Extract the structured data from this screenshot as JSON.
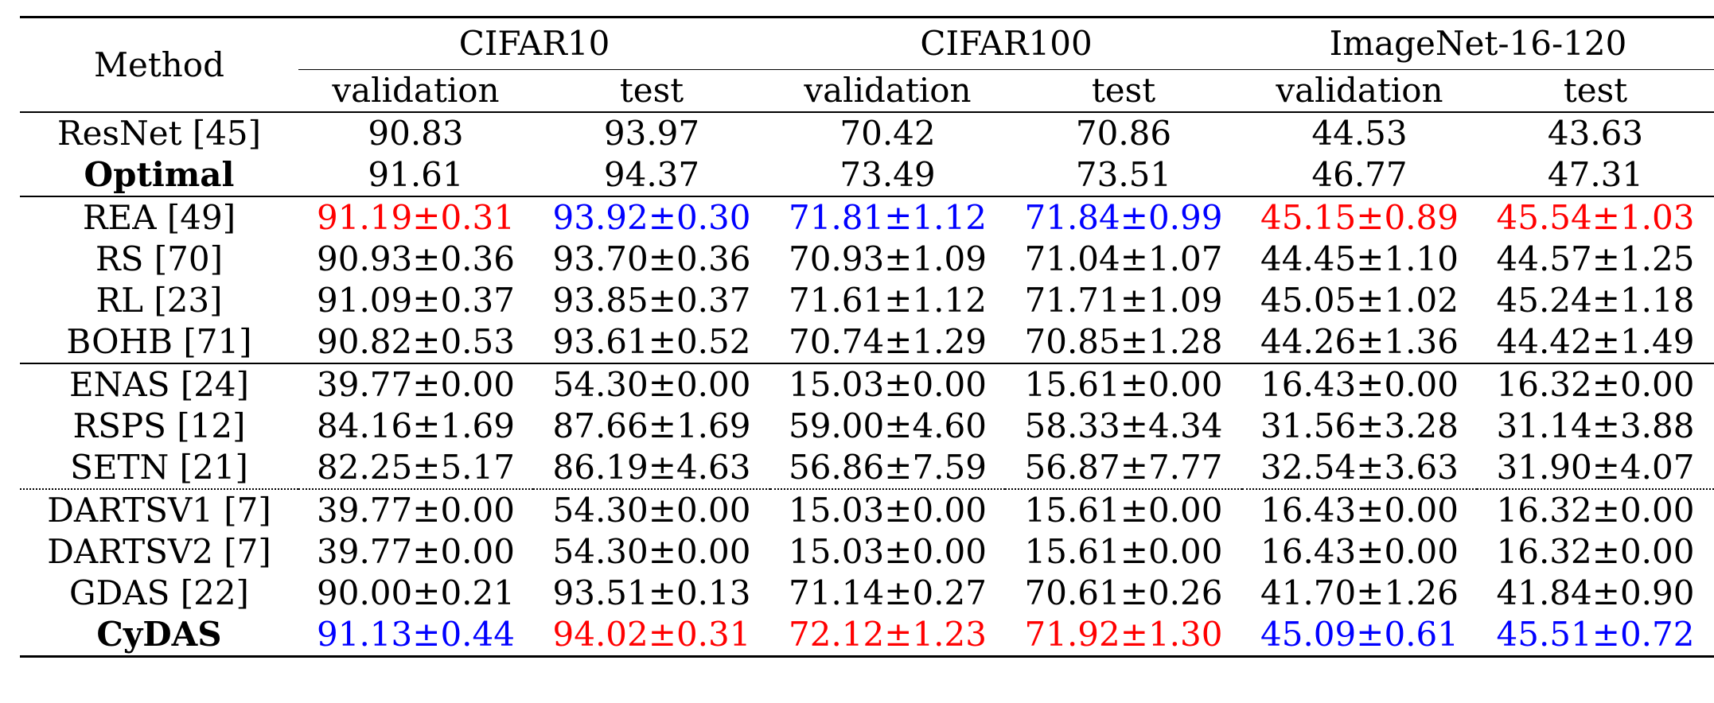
{
  "header": {
    "method": "Method",
    "datasets": [
      "CIFAR10",
      "CIFAR100",
      "ImageNet-16-120"
    ],
    "subcols": [
      "validation",
      "test",
      "validation",
      "test",
      "validation",
      "test"
    ]
  },
  "groups": [
    [
      {
        "method": "ResNet [45]",
        "bold": false,
        "values": [
          "90.83",
          "93.97",
          "70.42",
          "70.86",
          "44.53",
          "43.63"
        ],
        "colors": [
          "",
          "",
          "",
          "",
          "",
          ""
        ]
      },
      {
        "method": "Optimal",
        "bold": true,
        "values": [
          "91.61",
          "94.37",
          "73.49",
          "73.51",
          "46.77",
          "47.31"
        ],
        "colors": [
          "",
          "",
          "",
          "",
          "",
          ""
        ]
      }
    ],
    [
      {
        "method": "REA [49]",
        "bold": false,
        "values": [
          "91.19±0.31",
          "93.92±0.30",
          "71.81±1.12",
          "71.84±0.99",
          "45.15±0.89",
          "45.54±1.03"
        ],
        "colors": [
          "red",
          "blue",
          "blue",
          "blue",
          "red",
          "red"
        ]
      },
      {
        "method": "RS [70]",
        "bold": false,
        "values": [
          "90.93±0.36",
          "93.70±0.36",
          "70.93±1.09",
          "71.04±1.07",
          "44.45±1.10",
          "44.57±1.25"
        ],
        "colors": [
          "",
          "",
          "",
          "",
          "",
          ""
        ]
      },
      {
        "method": "RL [23]",
        "bold": false,
        "values": [
          "91.09±0.37",
          "93.85±0.37",
          "71.61±1.12",
          "71.71±1.09",
          "45.05±1.02",
          "45.24±1.18"
        ],
        "colors": [
          "",
          "",
          "",
          "",
          "",
          ""
        ]
      },
      {
        "method": "BOHB [71]",
        "bold": false,
        "values": [
          "90.82±0.53",
          "93.61±0.52",
          "70.74±1.29",
          "70.85±1.28",
          "44.26±1.36",
          "44.42±1.49"
        ],
        "colors": [
          "",
          "",
          "",
          "",
          "",
          ""
        ]
      }
    ],
    [
      {
        "method": "ENAS [24]",
        "bold": false,
        "values": [
          "39.77±0.00",
          "54.30±0.00",
          "15.03±0.00",
          "15.61±0.00",
          "16.43±0.00",
          "16.32±0.00"
        ],
        "colors": [
          "",
          "",
          "",
          "",
          "",
          ""
        ]
      },
      {
        "method": "RSPS [12]",
        "bold": false,
        "values": [
          "84.16±1.69",
          "87.66±1.69",
          "59.00±4.60",
          "58.33±4.34",
          "31.56±3.28",
          "31.14±3.88"
        ],
        "colors": [
          "",
          "",
          "",
          "",
          "",
          ""
        ]
      },
      {
        "method": "SETN [21]",
        "bold": false,
        "values": [
          "82.25±5.17",
          "86.19±4.63",
          "56.86±7.59",
          "56.87±7.77",
          "32.54±3.63",
          "31.90±4.07"
        ],
        "colors": [
          "",
          "",
          "",
          "",
          "",
          ""
        ]
      }
    ],
    [
      {
        "method": "DARTSV1 [7]",
        "bold": false,
        "values": [
          "39.77±0.00",
          "54.30±0.00",
          "15.03±0.00",
          "15.61±0.00",
          "16.43±0.00",
          "16.32±0.00"
        ],
        "colors": [
          "",
          "",
          "",
          "",
          "",
          ""
        ]
      },
      {
        "method": "DARTSV2 [7]",
        "bold": false,
        "values": [
          "39.77±0.00",
          "54.30±0.00",
          "15.03±0.00",
          "15.61±0.00",
          "16.43±0.00",
          "16.32±0.00"
        ],
        "colors": [
          "",
          "",
          "",
          "",
          "",
          ""
        ]
      },
      {
        "method": "GDAS [22]",
        "bold": false,
        "values": [
          "90.00±0.21",
          "93.51±0.13",
          "71.14±0.27",
          "70.61±0.26",
          "41.70±1.26",
          "41.84±0.90"
        ],
        "colors": [
          "",
          "",
          "",
          "",
          "",
          ""
        ]
      },
      {
        "method": "CyDAS",
        "bold": true,
        "values": [
          "91.13±0.44",
          "94.02±0.31",
          "72.12±1.23",
          "71.92±1.30",
          "45.09±0.61",
          "45.51±0.72"
        ],
        "colors": [
          "blue",
          "red",
          "red",
          "red",
          "blue",
          "blue"
        ]
      }
    ]
  ],
  "separators": [
    "solid",
    "solid",
    "solid",
    "dotted"
  ]
}
